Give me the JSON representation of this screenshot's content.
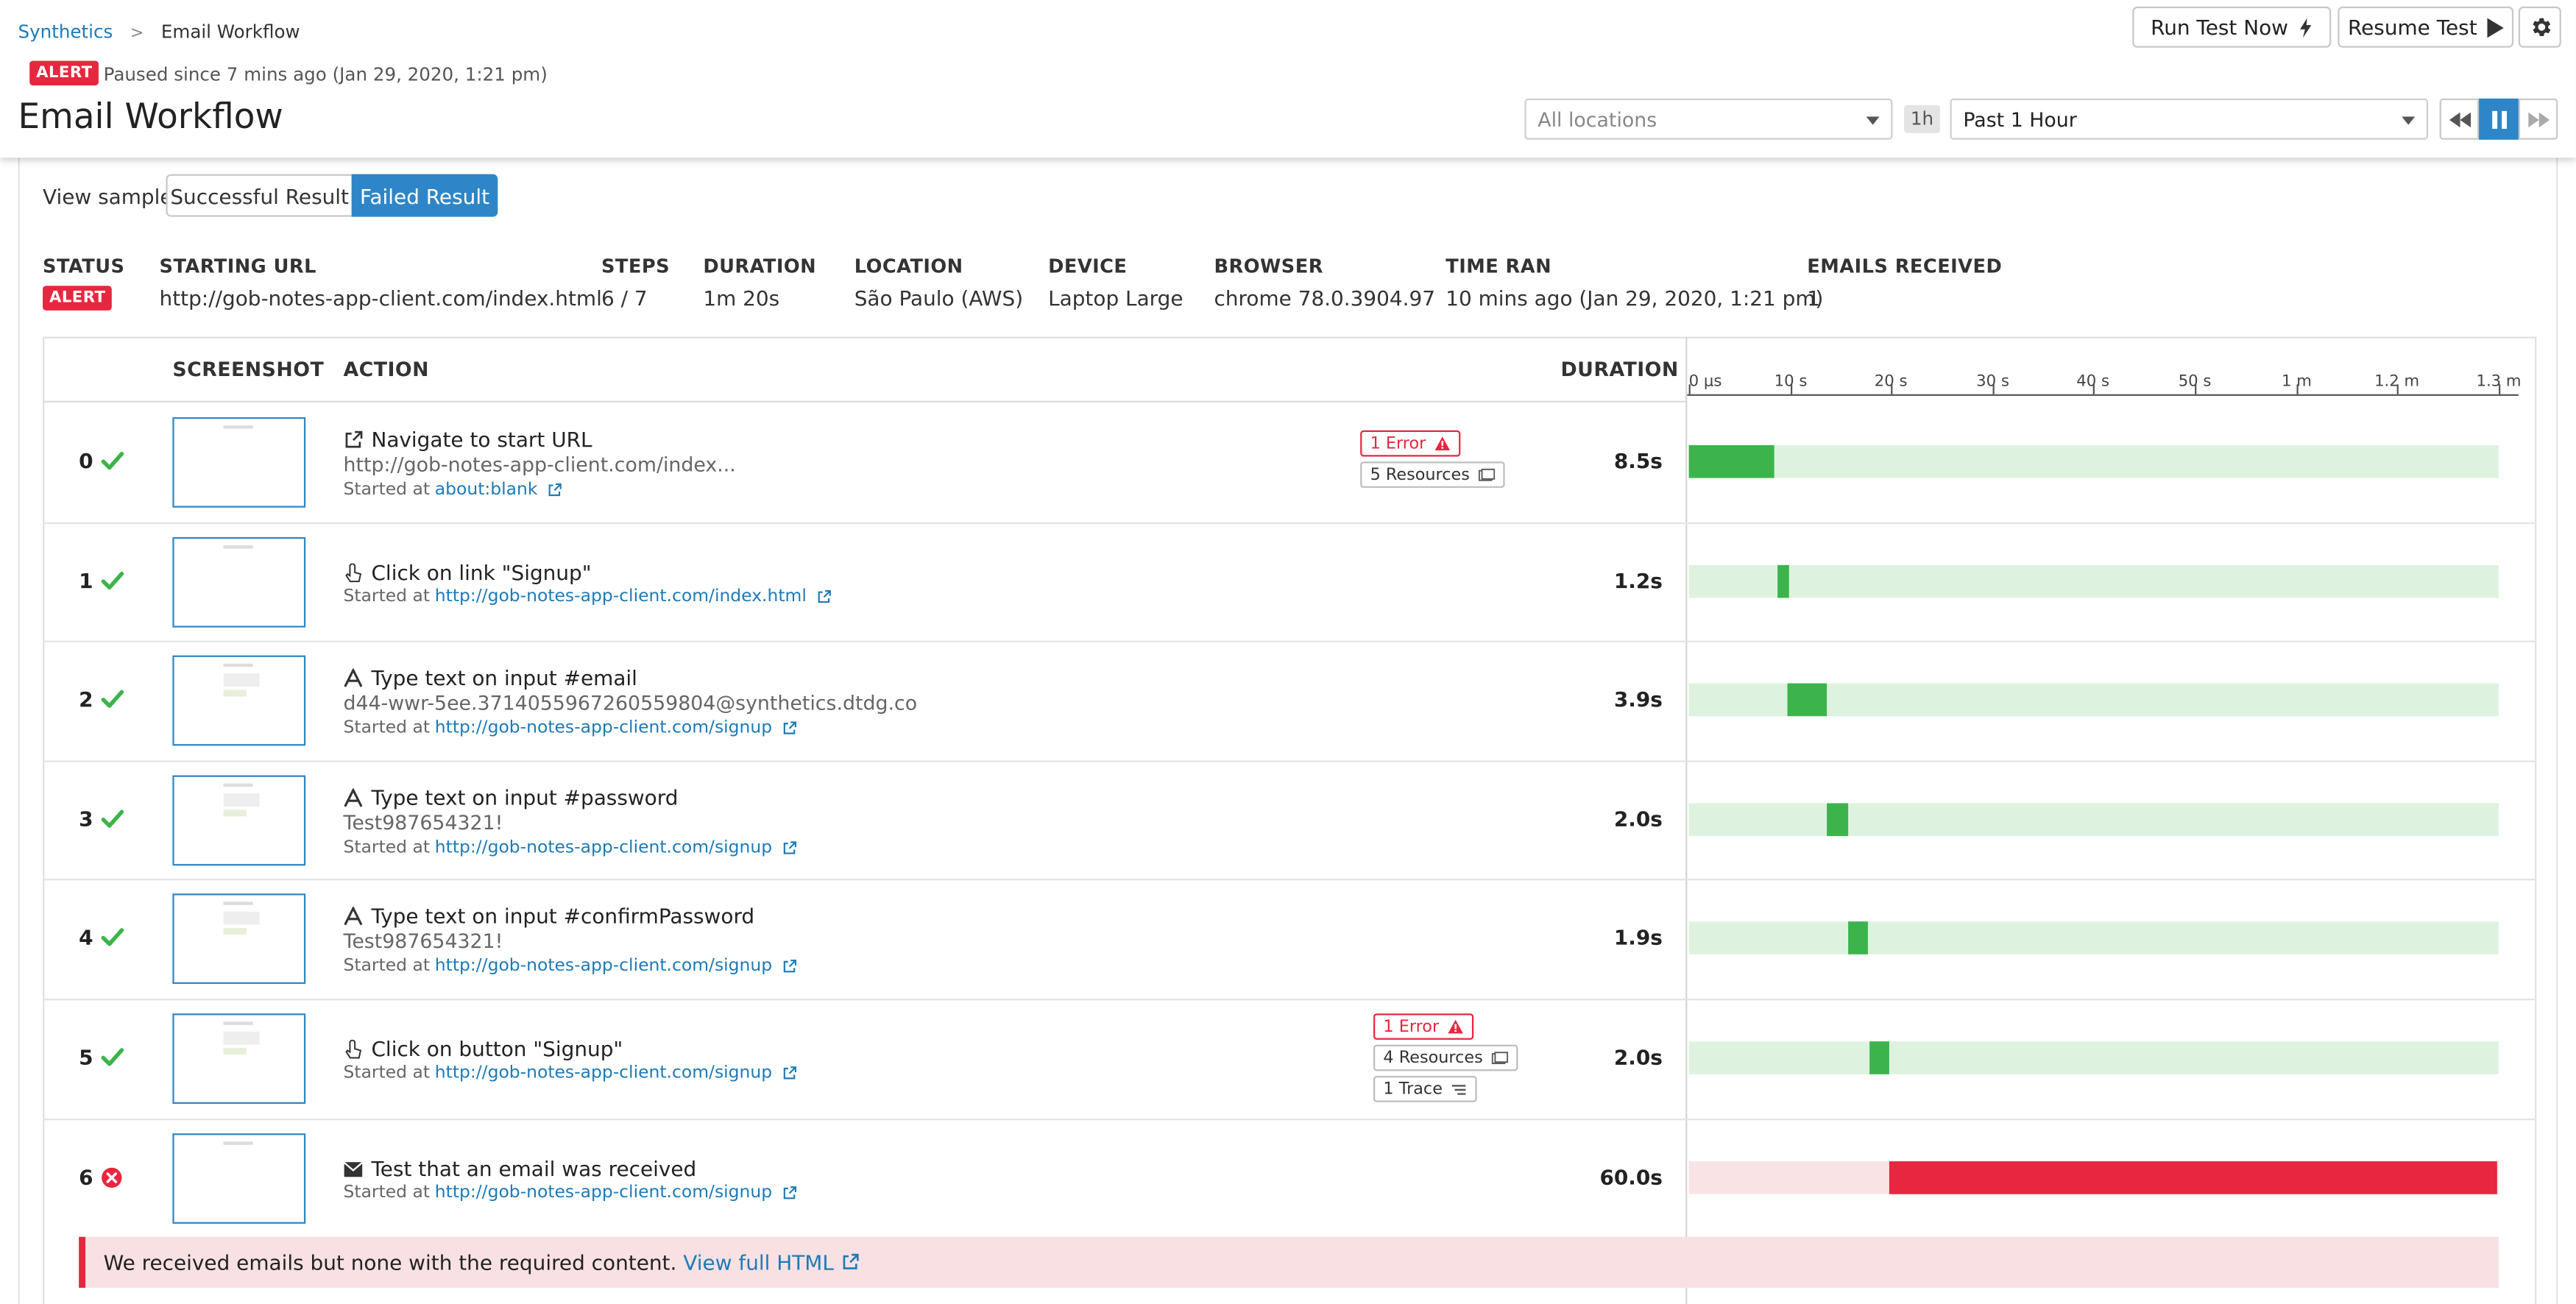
{
  "breadcrumb": {
    "root": "Synthetics",
    "current": "Email Workflow"
  },
  "header": {
    "alert_badge": "ALERT",
    "paused_text": "Paused since 7 mins ago (Jan 29, 2020, 1:21 pm)",
    "title": "Email Workflow",
    "run_test_label": "Run Test Now",
    "resume_test_label": "Resume Test",
    "locations_placeholder": "All locations",
    "time_shortcut": "1h",
    "time_range": "Past 1 Hour"
  },
  "view_sample": {
    "label": "View sample",
    "options": [
      "Successful Result",
      "Failed Result"
    ],
    "selected": "Failed Result"
  },
  "result_meta": {
    "status_label": "STATUS",
    "status_value": "ALERT",
    "url_label": "STARTING URL",
    "url_value": "http://gob-notes-app-client.com/index.html",
    "steps_label": "STEPS",
    "steps_value": "6 / 7",
    "duration_label": "DURATION",
    "duration_value": "1m 20s",
    "location_label": "LOCATION",
    "location_value": "São Paulo (AWS)",
    "device_label": "DEVICE",
    "device_value": "Laptop Large",
    "browser_label": "BROWSER",
    "browser_value": "chrome 78.0.3904.97",
    "time_ran_label": "TIME RAN",
    "time_ran_value": "10 mins ago (Jan 29, 2020, 1:21 pm)",
    "emails_label": "EMAILS RECEIVED",
    "emails_value": "1"
  },
  "table": {
    "columns": [
      "SCREENSHOT",
      "ACTION",
      "DURATION"
    ],
    "timeline_ticks": [
      "0 μs",
      "10 s",
      "20 s",
      "30 s",
      "40 s",
      "50 s",
      "1 m",
      "1.2 m",
      "1.3 m"
    ],
    "steps": [
      {
        "num": "0",
        "status": "passed",
        "action": "Navigate to start URL",
        "detail": "http://gob-notes-app-client.com/index...",
        "started_prefix": "Started at",
        "started_url": "about:blank",
        "errors": "1 Error",
        "resources": "5 Resources",
        "duration": "8.5s",
        "offset_s": 0.0,
        "length_s": 8.5
      },
      {
        "num": "1",
        "status": "passed",
        "action": "Click on link \"Signup\"",
        "started_prefix": "Started at",
        "started_url": "http://gob-notes-app-client.com/index.html",
        "duration": "1.2s",
        "offset_s": 8.7,
        "length_s": 1.2
      },
      {
        "num": "2",
        "status": "passed",
        "action": "Type text on input #email",
        "detail": "d44-wwr-5ee.3714055967260559804@synthetics.dtdg.co",
        "started_prefix": "Started at",
        "started_url": "http://gob-notes-app-client.com/signup",
        "duration": "3.9s",
        "offset_s": 9.8,
        "length_s": 3.9
      },
      {
        "num": "3",
        "status": "passed",
        "action": "Type text on input #password",
        "detail": "Test987654321!",
        "started_prefix": "Started at",
        "started_url": "http://gob-notes-app-client.com/signup",
        "duration": "2.0s",
        "offset_s": 13.7,
        "length_s": 2.0
      },
      {
        "num": "4",
        "status": "passed",
        "action": "Type text on input #confirmPassword",
        "detail": "Test987654321!",
        "started_prefix": "Started at",
        "started_url": "http://gob-notes-app-client.com/signup",
        "duration": "1.9s",
        "offset_s": 15.8,
        "length_s": 1.9
      },
      {
        "num": "5",
        "status": "passed",
        "action": "Click on button \"Signup\"",
        "started_prefix": "Started at",
        "started_url": "http://gob-notes-app-client.com/signup",
        "errors": "1 Error",
        "resources": "4 Resources",
        "traces": "1 Trace",
        "duration": "2.0s",
        "offset_s": 17.8,
        "length_s": 2.0
      },
      {
        "num": "6",
        "status": "failed",
        "action": "Test that an email was received",
        "started_prefix": "Started at",
        "started_url": "http://gob-notes-app-client.com/signup",
        "duration": "60.0s",
        "offset_s": 19.8,
        "length_s": 60.0
      }
    ]
  },
  "error_banner": {
    "message": "We received emails but none with the required content.",
    "link": "View full HTML"
  },
  "colors": {
    "alert": "#e8263f",
    "success": "#3cb44b",
    "success_light": "#def3df",
    "fail_light": "#fae3e5",
    "link": "#1d7ab8",
    "accent": "#2e86c8"
  }
}
